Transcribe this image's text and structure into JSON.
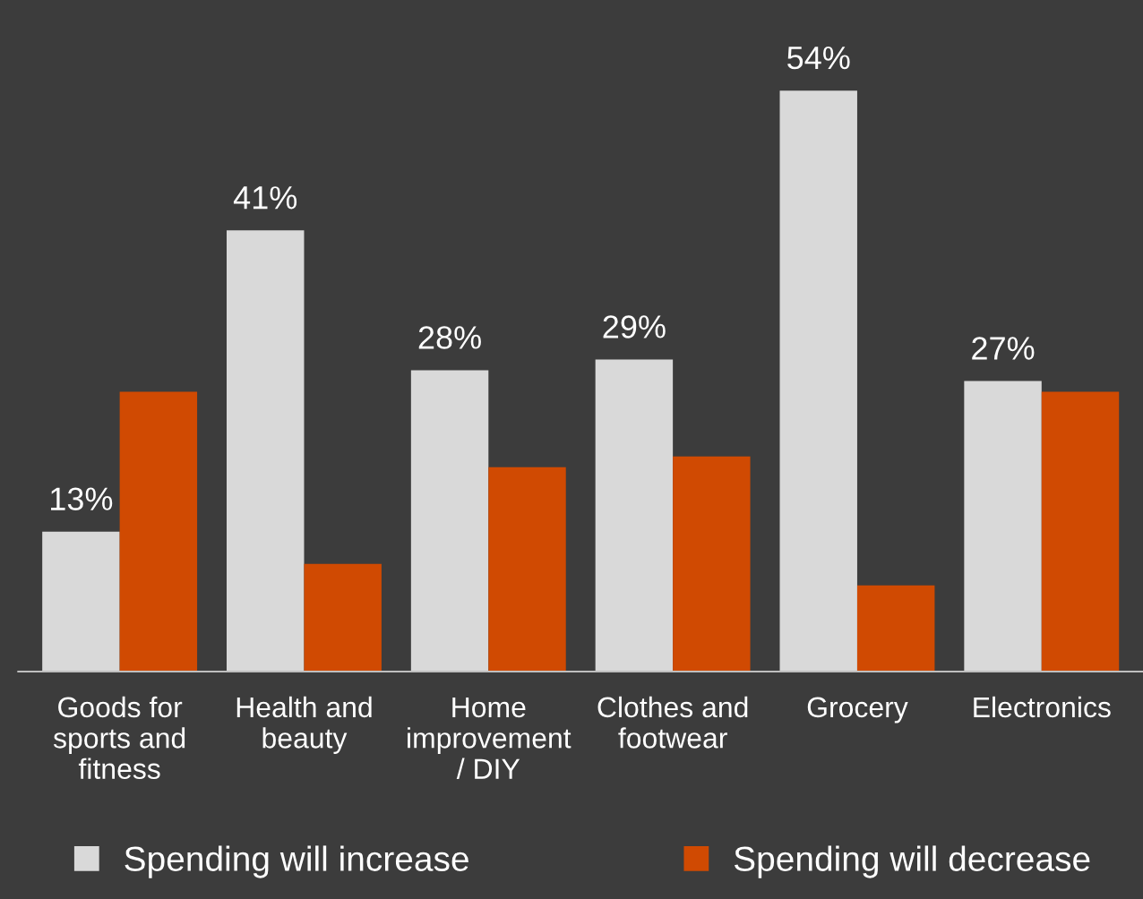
{
  "chart_data": {
    "type": "bar",
    "categories": [
      "Goods for\nsports and\nfitness",
      "Health and\nbeauty",
      "Home\nimprovement\n/ DIY",
      "Clothes and\nfootwear",
      "Grocery",
      "Electronics"
    ],
    "series": [
      {
        "name": "Spending will increase",
        "color": "#d9d9d9",
        "values": [
          13,
          41,
          28,
          29,
          54,
          27
        ],
        "value_labels": [
          "13%",
          "41%",
          "28%",
          "29%",
          "54%",
          "27%"
        ]
      },
      {
        "name": "Spending will decrease",
        "color": "#d04a02",
        "values": [
          26,
          10,
          19,
          20,
          8,
          26
        ]
      }
    ],
    "ylim": [
      0,
      62
    ],
    "tick_labels": "x",
    "legend": "bottom",
    "grid": false
  }
}
